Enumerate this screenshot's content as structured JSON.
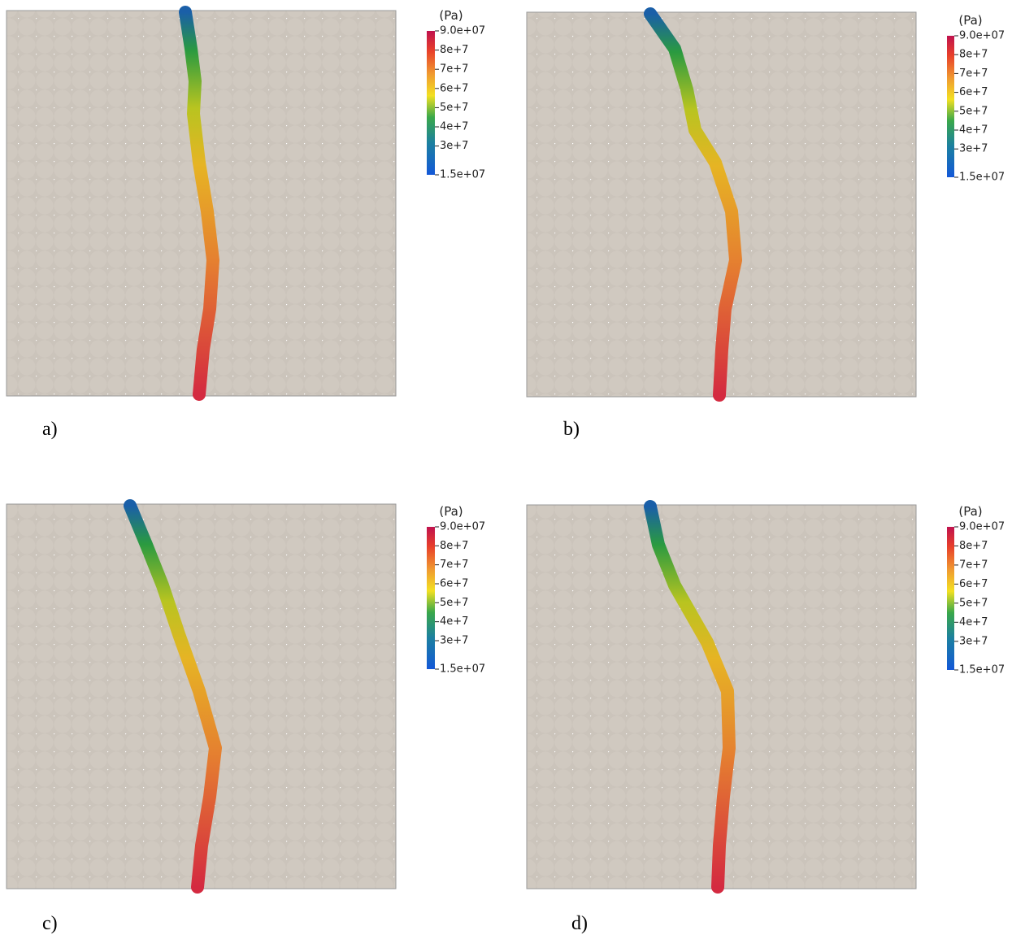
{
  "panels": [
    {
      "label": "a)",
      "colorbar": {
        "title": "(Pa)",
        "ticks": [
          {
            "value": 90000000,
            "label": "9.0e+07"
          },
          {
            "value": 80000000,
            "label": "8e+7"
          },
          {
            "value": 70000000,
            "label": "7e+7"
          },
          {
            "value": 60000000,
            "label": "6e+7"
          },
          {
            "value": 50000000,
            "label": "5e+7"
          },
          {
            "value": 40000000,
            "label": "4e+7"
          },
          {
            "value": 30000000,
            "label": "3e+7"
          },
          {
            "value": 15000000,
            "label": "1.5e+07"
          }
        ]
      }
    },
    {
      "label": "b)",
      "colorbar": {
        "title": "(Pa)",
        "ticks": [
          {
            "value": 90000000,
            "label": "9.0e+07"
          },
          {
            "value": 80000000,
            "label": "8e+7"
          },
          {
            "value": 70000000,
            "label": "7e+7"
          },
          {
            "value": 60000000,
            "label": "6e+7"
          },
          {
            "value": 50000000,
            "label": "5e+7"
          },
          {
            "value": 40000000,
            "label": "4e+7"
          },
          {
            "value": 30000000,
            "label": "3e+7"
          },
          {
            "value": 15000000,
            "label": "1.5e+07"
          }
        ]
      }
    },
    {
      "label": "c)",
      "colorbar": {
        "title": "(Pa)",
        "ticks": [
          {
            "value": 90000000,
            "label": "9.0e+07"
          },
          {
            "value": 80000000,
            "label": "8e+7"
          },
          {
            "value": 70000000,
            "label": "7e+7"
          },
          {
            "value": 60000000,
            "label": "6e+7"
          },
          {
            "value": 50000000,
            "label": "5e+7"
          },
          {
            "value": 40000000,
            "label": "4e+7"
          },
          {
            "value": 30000000,
            "label": "3e+7"
          },
          {
            "value": 15000000,
            "label": "1.5e+07"
          }
        ]
      }
    },
    {
      "label": "d)",
      "colorbar": {
        "title": "(Pa)",
        "ticks": [
          {
            "value": 90000000,
            "label": "9.0e+07"
          },
          {
            "value": 80000000,
            "label": "8e+7"
          },
          {
            "value": 70000000,
            "label": "7e+7"
          },
          {
            "value": 60000000,
            "label": "6e+7"
          },
          {
            "value": 50000000,
            "label": "5e+7"
          },
          {
            "value": 40000000,
            "label": "4e+7"
          },
          {
            "value": 30000000,
            "label": "3e+7"
          },
          {
            "value": 15000000,
            "label": "1.5e+07"
          }
        ]
      }
    }
  ]
}
